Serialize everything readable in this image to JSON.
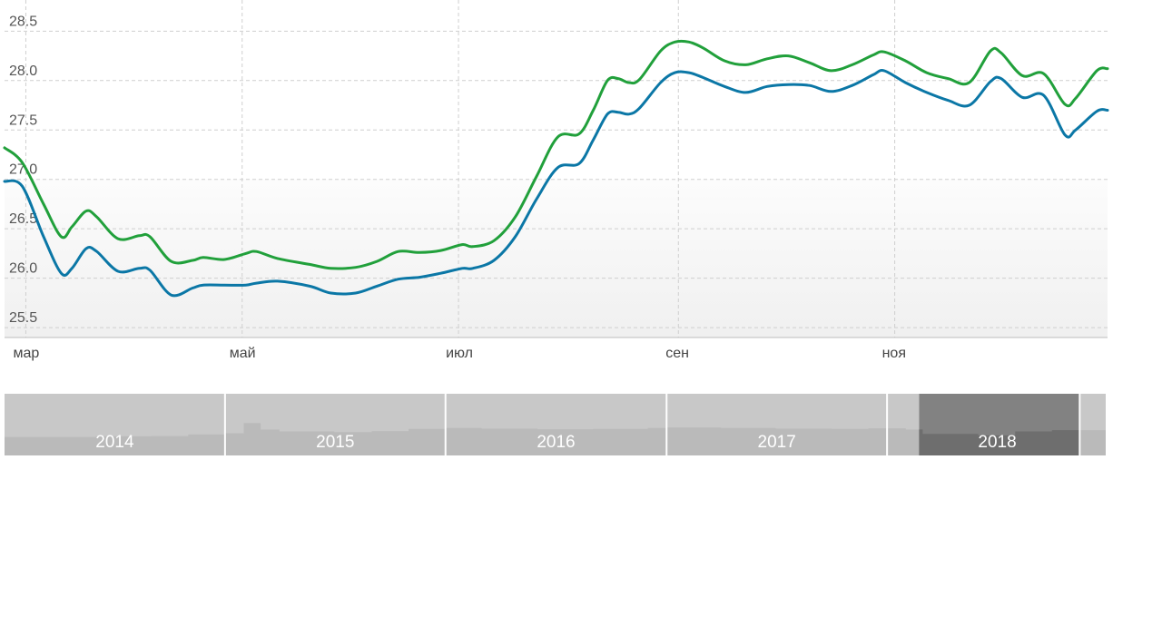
{
  "chart_data": {
    "type": "line",
    "title": "",
    "xlabel": "",
    "ylabel": "",
    "ylim": [
      25.5,
      28.5
    ],
    "yticks": [
      "25.5",
      "26.0",
      "26.5",
      "27.0",
      "27.5",
      "28.0",
      "28.5"
    ],
    "xlim": [
      "2018-02-23",
      "2018-12-31"
    ],
    "xticks": [
      {
        "date": "2018-03-01",
        "label": "мар"
      },
      {
        "date": "2018-05-01",
        "label": "май"
      },
      {
        "date": "2018-07-01",
        "label": "июл"
      },
      {
        "date": "2018-09-01",
        "label": "сен"
      },
      {
        "date": "2018-11-01",
        "label": "ноя"
      }
    ],
    "grid": true,
    "shaded_band": [
      25.5,
      27.0
    ],
    "series": [
      {
        "color": "#21a03b",
        "points": [
          [
            "2018-02-23",
            27.32
          ],
          [
            "2018-02-28",
            27.17
          ],
          [
            "2018-03-06",
            26.75
          ],
          [
            "2018-03-11",
            26.42
          ],
          [
            "2018-03-14",
            26.52
          ],
          [
            "2018-03-18",
            26.68
          ],
          [
            "2018-03-21",
            26.62
          ],
          [
            "2018-03-27",
            26.4
          ],
          [
            "2018-04-02",
            26.43
          ],
          [
            "2018-04-05",
            26.42
          ],
          [
            "2018-04-11",
            26.17
          ],
          [
            "2018-04-17",
            26.18
          ],
          [
            "2018-04-20",
            26.21
          ],
          [
            "2018-04-26",
            26.19
          ],
          [
            "2018-05-02",
            26.25
          ],
          [
            "2018-05-05",
            26.27
          ],
          [
            "2018-05-11",
            26.2
          ],
          [
            "2018-05-20",
            26.14
          ],
          [
            "2018-05-26",
            26.1
          ],
          [
            "2018-06-02",
            26.11
          ],
          [
            "2018-06-08",
            26.17
          ],
          [
            "2018-06-14",
            26.27
          ],
          [
            "2018-06-20",
            26.26
          ],
          [
            "2018-06-26",
            26.28
          ],
          [
            "2018-07-02",
            26.34
          ],
          [
            "2018-07-05",
            26.32
          ],
          [
            "2018-07-11",
            26.38
          ],
          [
            "2018-07-17",
            26.62
          ],
          [
            "2018-07-23",
            27.03
          ],
          [
            "2018-07-29",
            27.43
          ],
          [
            "2018-08-04",
            27.46
          ],
          [
            "2018-08-08",
            27.7
          ],
          [
            "2018-08-12",
            28.0
          ],
          [
            "2018-08-15",
            28.02
          ],
          [
            "2018-08-18",
            27.98
          ],
          [
            "2018-08-21",
            28.01
          ],
          [
            "2018-08-27",
            28.3
          ],
          [
            "2018-08-31",
            28.39
          ],
          [
            "2018-09-04",
            28.39
          ],
          [
            "2018-09-08",
            28.33
          ],
          [
            "2018-09-14",
            28.2
          ],
          [
            "2018-09-20",
            28.16
          ],
          [
            "2018-09-26",
            28.22
          ],
          [
            "2018-10-02",
            28.25
          ],
          [
            "2018-10-08",
            28.18
          ],
          [
            "2018-10-14",
            28.1
          ],
          [
            "2018-10-20",
            28.16
          ],
          [
            "2018-10-26",
            28.26
          ],
          [
            "2018-10-29",
            28.29
          ],
          [
            "2018-11-04",
            28.2
          ],
          [
            "2018-11-10",
            28.08
          ],
          [
            "2018-11-16",
            28.02
          ],
          [
            "2018-11-22",
            27.98
          ],
          [
            "2018-11-28",
            28.3
          ],
          [
            "2018-12-01",
            28.28
          ],
          [
            "2018-12-07",
            28.05
          ],
          [
            "2018-12-13",
            28.07
          ],
          [
            "2018-12-19",
            27.76
          ],
          [
            "2018-12-22",
            27.82
          ],
          [
            "2018-12-28",
            28.1
          ],
          [
            "2018-12-31",
            28.12
          ]
        ]
      },
      {
        "color": "#0b77a6",
        "points": [
          [
            "2018-02-23",
            26.98
          ],
          [
            "2018-02-28",
            26.93
          ],
          [
            "2018-03-06",
            26.42
          ],
          [
            "2018-03-11",
            26.05
          ],
          [
            "2018-03-14",
            26.1
          ],
          [
            "2018-03-18",
            26.3
          ],
          [
            "2018-03-21",
            26.27
          ],
          [
            "2018-03-27",
            26.07
          ],
          [
            "2018-04-02",
            26.1
          ],
          [
            "2018-04-05",
            26.08
          ],
          [
            "2018-04-11",
            25.83
          ],
          [
            "2018-04-17",
            25.9
          ],
          [
            "2018-04-20",
            25.93
          ],
          [
            "2018-04-26",
            25.93
          ],
          [
            "2018-05-02",
            25.93
          ],
          [
            "2018-05-05",
            25.95
          ],
          [
            "2018-05-11",
            25.97
          ],
          [
            "2018-05-20",
            25.92
          ],
          [
            "2018-05-26",
            25.85
          ],
          [
            "2018-06-02",
            25.85
          ],
          [
            "2018-06-08",
            25.92
          ],
          [
            "2018-06-14",
            25.99
          ],
          [
            "2018-06-20",
            26.01
          ],
          [
            "2018-06-26",
            26.05
          ],
          [
            "2018-07-02",
            26.1
          ],
          [
            "2018-07-05",
            26.1
          ],
          [
            "2018-07-11",
            26.18
          ],
          [
            "2018-07-17",
            26.42
          ],
          [
            "2018-07-23",
            26.8
          ],
          [
            "2018-07-29",
            27.12
          ],
          [
            "2018-08-04",
            27.16
          ],
          [
            "2018-08-08",
            27.4
          ],
          [
            "2018-08-12",
            27.66
          ],
          [
            "2018-08-15",
            27.68
          ],
          [
            "2018-08-18",
            27.66
          ],
          [
            "2018-08-21",
            27.72
          ],
          [
            "2018-08-27",
            27.98
          ],
          [
            "2018-08-31",
            28.08
          ],
          [
            "2018-09-04",
            28.08
          ],
          [
            "2018-09-08",
            28.03
          ],
          [
            "2018-09-14",
            27.94
          ],
          [
            "2018-09-20",
            27.88
          ],
          [
            "2018-09-26",
            27.94
          ],
          [
            "2018-10-02",
            27.96
          ],
          [
            "2018-10-08",
            27.95
          ],
          [
            "2018-10-14",
            27.89
          ],
          [
            "2018-10-20",
            27.95
          ],
          [
            "2018-10-26",
            28.06
          ],
          [
            "2018-10-29",
            28.1
          ],
          [
            "2018-11-04",
            27.98
          ],
          [
            "2018-11-10",
            27.88
          ],
          [
            "2018-11-16",
            27.8
          ],
          [
            "2018-11-22",
            27.75
          ],
          [
            "2018-11-28",
            27.99
          ],
          [
            "2018-12-01",
            28.02
          ],
          [
            "2018-12-07",
            27.83
          ],
          [
            "2018-12-13",
            27.85
          ],
          [
            "2018-12-19",
            27.45
          ],
          [
            "2018-12-22",
            27.5
          ],
          [
            "2018-12-28",
            27.69
          ],
          [
            "2018-12-31",
            27.7
          ]
        ]
      }
    ]
  },
  "navigator": {
    "years": [
      "2014",
      "2015",
      "2016",
      "2017",
      "2018"
    ],
    "selected_year": "2018",
    "colors": {
      "background": "#bababa",
      "area": "#c8c8c8",
      "selected_background": "#828282",
      "selected_area": "#6e6e6e",
      "separator": "#ffffff"
    },
    "overview_trend": [
      [
        "2014-01-01",
        26.0
      ],
      [
        "2014-04-01",
        26.0
      ],
      [
        "2014-06-01",
        26.2
      ],
      [
        "2014-09-01",
        26.3
      ],
      [
        "2014-11-01",
        26.8
      ],
      [
        "2015-01-01",
        27.2
      ],
      [
        "2015-02-01",
        30.5
      ],
      [
        "2015-03-01",
        28.4
      ],
      [
        "2015-04-01",
        27.8
      ],
      [
        "2015-07-01",
        27.6
      ],
      [
        "2015-09-01",
        27.9
      ],
      [
        "2015-11-01",
        28.6
      ],
      [
        "2016-01-01",
        28.9
      ],
      [
        "2016-03-01",
        28.7
      ],
      [
        "2016-06-01",
        28.5
      ],
      [
        "2016-09-01",
        28.6
      ],
      [
        "2016-12-01",
        28.9
      ],
      [
        "2017-01-01",
        29.1
      ],
      [
        "2017-04-01",
        28.9
      ],
      [
        "2017-07-01",
        28.7
      ],
      [
        "2017-10-01",
        28.6
      ],
      [
        "2017-12-01",
        28.8
      ],
      [
        "2018-02-01",
        28.4
      ],
      [
        "2018-03-01",
        27.0
      ],
      [
        "2018-06-01",
        26.5
      ],
      [
        "2018-08-01",
        27.8
      ],
      [
        "2018-10-01",
        28.2
      ],
      [
        "2018-12-31",
        28.0
      ]
    ]
  }
}
